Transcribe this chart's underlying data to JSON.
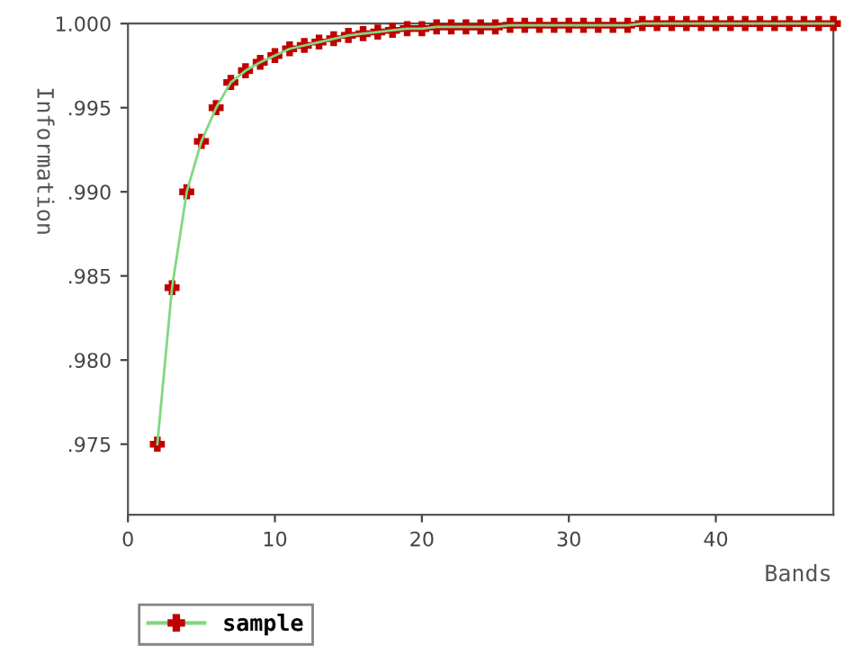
{
  "chart_data": {
    "type": "line",
    "xlabel": "Bands",
    "ylabel": "Information",
    "x": [
      2,
      3,
      4,
      5,
      6,
      7,
      8,
      9,
      10,
      11,
      12,
      13,
      14,
      15,
      16,
      17,
      18,
      19,
      20,
      21,
      22,
      23,
      24,
      25,
      26,
      27,
      28,
      29,
      30,
      31,
      32,
      33,
      34,
      35,
      36,
      37,
      38,
      39,
      40,
      41,
      42,
      43,
      44,
      45,
      46,
      47,
      48
    ],
    "series": [
      {
        "color": "#80d880",
        "marker": "none",
        "values": [
          0.975,
          0.9843,
          0.99,
          0.993,
          0.995,
          0.9965,
          0.9972,
          0.9977,
          0.9981,
          0.9985,
          0.9987,
          0.9989,
          0.9991,
          0.9993,
          0.9994,
          0.9995,
          0.9996,
          0.9997,
          0.9997,
          0.9998,
          0.9998,
          0.9998,
          0.9998,
          0.9998,
          0.9999,
          0.9999,
          0.9999,
          0.9999,
          0.9999,
          0.9999,
          0.9999,
          0.9999,
          0.9999,
          1.0,
          1.0,
          1.0,
          1.0,
          1.0,
          1.0,
          1.0,
          1.0,
          1.0,
          1.0,
          1.0,
          1.0,
          1.0,
          1.0
        ]
      },
      {
        "type": "scatter",
        "name": "sample",
        "color": "#c00000",
        "values": [
          0.975,
          0.9843,
          0.99,
          0.993,
          0.995,
          0.9965,
          0.9972,
          0.9977,
          0.9981,
          0.9985,
          0.9987,
          0.9989,
          0.9991,
          0.9993,
          0.9994,
          0.9995,
          0.9996,
          0.9997,
          0.9997,
          0.9998,
          0.9998,
          0.9998,
          0.9998,
          0.9998,
          0.9999,
          0.9999,
          0.9999,
          0.9999,
          0.9999,
          0.9999,
          0.9999,
          0.9999,
          0.9999,
          1.0,
          1.0,
          1.0,
          1.0,
          1.0,
          1.0,
          1.0,
          1.0,
          1.0,
          1.0,
          1.0,
          1.0,
          1.0,
          1.0
        ]
      }
    ],
    "xlim": [
      0,
      48
    ],
    "xticks": [
      0,
      10,
      20,
      30,
      40
    ],
    "ylim": [
      0.9708,
      1.0
    ],
    "yticks": [
      {
        "value": 0.975,
        "label": ".975"
      },
      {
        "value": 0.98,
        "label": ".980"
      },
      {
        "value": 0.985,
        "label": ".985"
      },
      {
        "value": 0.99,
        "label": ".990"
      },
      {
        "value": 0.995,
        "label": ".995"
      },
      {
        "value": 1.0,
        "label": "1.000"
      }
    ],
    "marker": "cross",
    "line_style": "solid",
    "legend": "bottom left",
    "grid": false
  }
}
